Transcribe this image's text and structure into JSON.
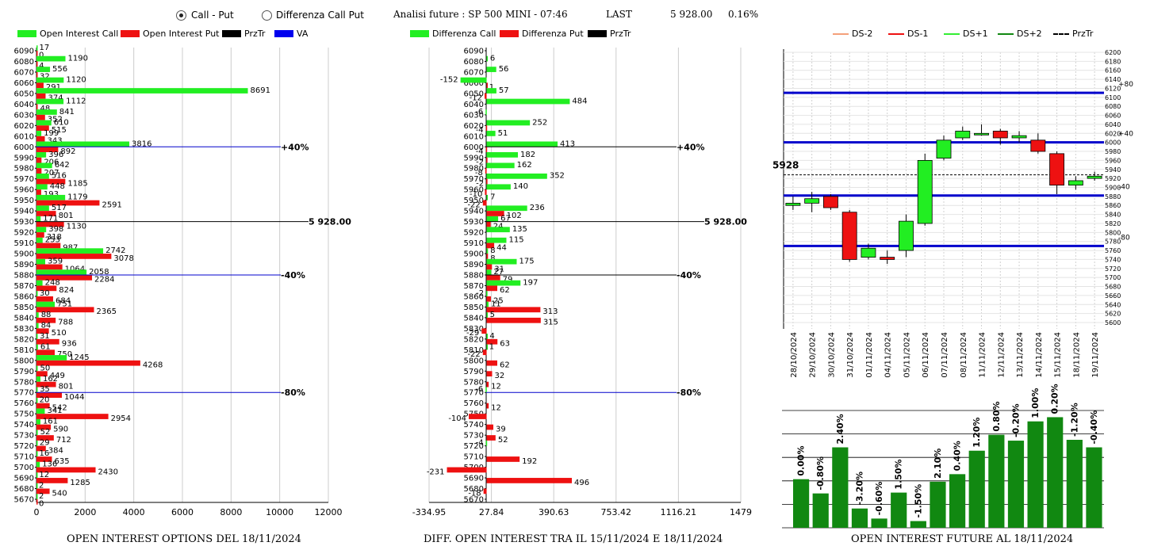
{
  "controls": {
    "radio_call_put": "Call - Put",
    "radio_diff": "Differenza Call Put",
    "selected": "call_put"
  },
  "info": {
    "title": "Analisi future : SP 500 MINI - 07:46",
    "last_label": "LAST",
    "last_value": "5 928.00",
    "change": "0.16%"
  },
  "chart_data": [
    {
      "type": "bar",
      "orientation": "horizontal",
      "footer": "OPEN INTEREST OPTIONS DEL 18/11/2024",
      "legend": [
        {
          "name": "Open Interest Call",
          "color": "#22ee22"
        },
        {
          "name": "Open Interest Put",
          "color": "#ee1111"
        },
        {
          "name": "PrzTr",
          "color": "#000000"
        },
        {
          "name": "VA",
          "color": "#0000ee"
        }
      ],
      "strikes": [
        6090,
        6080,
        6070,
        6060,
        6050,
        6040,
        6030,
        6020,
        6010,
        6000,
        5990,
        5980,
        5970,
        5960,
        5950,
        5940,
        5930,
        5920,
        5910,
        5900,
        5890,
        5880,
        5870,
        5860,
        5850,
        5840,
        5830,
        5820,
        5810,
        5800,
        5790,
        5780,
        5770,
        5760,
        5750,
        5740,
        5730,
        5720,
        5710,
        5700,
        5690,
        5680,
        5670
      ],
      "call": [
        17,
        1190,
        556,
        1120,
        8691,
        1112,
        841,
        610,
        199,
        3816,
        396,
        642,
        516,
        448,
        1179,
        517,
        171,
        398,
        253,
        2742,
        359,
        2058,
        248,
        30,
        751,
        88,
        84,
        31,
        61,
        1245,
        50,
        162,
        35,
        20,
        341,
        161,
        52,
        29,
        16,
        136,
        12,
        2,
        2
      ],
      "put": [
        0,
        4,
        32,
        291,
        374,
        48,
        352,
        515,
        343,
        892,
        206,
        207,
        1185,
        193,
        2591,
        801,
        1130,
        318,
        987,
        3078,
        1064,
        2284,
        824,
        684,
        2365,
        788,
        510,
        936,
        750,
        4268,
        449,
        801,
        1044,
        542,
        2954,
        590,
        712,
        384,
        635,
        2430,
        1285,
        540,
        0
      ],
      "xticks": [
        "0",
        "2000",
        "4000",
        "6000",
        "8000",
        "10000",
        "12000"
      ],
      "xlim": [
        0,
        12000
      ],
      "lines": [
        {
          "strike": 6000,
          "label": "+40%",
          "color": "#0000cc"
        },
        {
          "strike": 5930,
          "label": "5 928.00",
          "color": "#000000"
        },
        {
          "strike": 5880,
          "label": "-40%",
          "color": "#0000cc"
        },
        {
          "strike": 5770,
          "label": "-80%",
          "color": "#0000cc"
        }
      ]
    },
    {
      "type": "bar",
      "orientation": "horizontal",
      "footer": "DIFF. OPEN INTEREST TRA IL 15/11/2024 E 18/11/2024",
      "legend": [
        {
          "name": "Differenza Call",
          "color": "#22ee22"
        },
        {
          "name": "Differenza Put",
          "color": "#ee1111"
        },
        {
          "name": "PrzTr",
          "color": "#000000"
        }
      ],
      "strikes": [
        6090,
        6080,
        6070,
        6060,
        6050,
        6040,
        6030,
        6020,
        6010,
        6000,
        5990,
        5980,
        5970,
        5960,
        5950,
        5940,
        5930,
        5920,
        5910,
        5900,
        5890,
        5880,
        5870,
        5860,
        5850,
        5840,
        5830,
        5820,
        5810,
        5800,
        5790,
        5780,
        5770,
        5760,
        5750,
        5740,
        5730,
        5720,
        5710,
        5700,
        5690,
        5680,
        5670
      ],
      "call": [
        null,
        6,
        56,
        -152,
        57,
        484,
        -6,
        252,
        51,
        413,
        182,
        162,
        352,
        140,
        7,
        236,
        67,
        135,
        115,
        8,
        175,
        27,
        197,
        -2,
        11,
        5,
        null,
        4,
        1,
        null,
        null,
        null,
        -6,
        null,
        null,
        null,
        null,
        -4,
        null,
        null,
        null,
        null,
        null
      ],
      "put": [
        null,
        null,
        null,
        1,
        -12,
        null,
        null,
        -4,
        null,
        -4,
        -2,
        -8,
        -2,
        -10,
        -22,
        102,
        24,
        null,
        44,
        8,
        31,
        79,
        62,
        25,
        313,
        315,
        -29,
        63,
        -22,
        62,
        32,
        12,
        null,
        12,
        -104,
        39,
        52,
        null,
        192,
        -231,
        496,
        -18,
        null
      ],
      "xticks": [
        "-334.95",
        "27.84",
        "390.63",
        "753.42",
        "1116.21",
        "1479"
      ],
      "xlim": [
        -334.95,
        1479
      ],
      "lines": [
        {
          "strike": 6000,
          "label": "+40%",
          "color": "#000000"
        },
        {
          "strike": 5930,
          "label": "5 928.00",
          "color": "#000000"
        },
        {
          "strike": 5880,
          "label": "-40%",
          "color": "#000000"
        },
        {
          "strike": 5770,
          "label": "-80%",
          "color": "#0000cc"
        }
      ]
    },
    {
      "type": "candlestick",
      "legend": [
        {
          "name": "DS-2",
          "color": "#f4a07a"
        },
        {
          "name": "DS-1",
          "color": "#ee1111"
        },
        {
          "name": "DS+1",
          "color": "#33ee33"
        },
        {
          "name": "DS+2",
          "color": "#118811"
        },
        {
          "name": "PrzTr",
          "color": "#000000"
        }
      ],
      "dates": [
        "28/10/2024",
        "29/10/2024",
        "30/10/2024",
        "31/10/2024",
        "01/11/2024",
        "04/11/2024",
        "05/11/2024",
        "06/11/2024",
        "07/11/2024",
        "08/11/2024",
        "11/11/2024",
        "12/11/2024",
        "13/11/2024",
        "14/11/2024",
        "15/11/2024",
        "18/11/2024",
        "19/11/2024"
      ],
      "open": [
        5860,
        5865,
        5880,
        5845,
        5745,
        5745,
        5760,
        5820,
        5965,
        6010,
        6020,
        6025,
        6010,
        6005,
        5975,
        5905,
        5920
      ],
      "close": [
        5865,
        5875,
        5855,
        5740,
        5765,
        5740,
        5825,
        5960,
        6005,
        6025,
        6020,
        6010,
        6015,
        5980,
        5905,
        5915,
        5925
      ],
      "high": [
        5880,
        5890,
        5885,
        5850,
        5775,
        5760,
        5840,
        5975,
        6015,
        6035,
        6040,
        6030,
        6025,
        6020,
        5980,
        5925,
        5935
      ],
      "low": [
        5850,
        5845,
        5850,
        5735,
        5740,
        5730,
        5745,
        5815,
        5960,
        6005,
        6015,
        5995,
        6000,
        5975,
        5885,
        5895,
        5915
      ],
      "ylim": [
        5600,
        6200
      ],
      "yticks": [
        5600,
        5620,
        5640,
        5660,
        5680,
        5700,
        5720,
        5740,
        5760,
        5780,
        5800,
        5820,
        5840,
        5860,
        5880,
        5900,
        5920,
        5940,
        5960,
        5980,
        6000,
        6020,
        6040,
        6060,
        6080,
        6100,
        6120,
        6140,
        6160,
        6180,
        6200
      ],
      "price_label": "5928",
      "price": 5928,
      "levels": [
        {
          "value": 6110,
          "label": "+80",
          "color": "#0000cc"
        },
        {
          "value": 6000,
          "label": "+40",
          "color": "#0000cc"
        },
        {
          "value": 5882,
          "label": "-40",
          "color": "#0000cc"
        },
        {
          "value": 5770,
          "label": "-80",
          "color": "#0000cc"
        }
      ]
    },
    {
      "type": "bar",
      "footer": "OPEN INTEREST FUTURE AL 18/11/2024",
      "labels": [
        "0.00%",
        "-0.80%",
        "2.40%",
        "-3.20%",
        "-0.60%",
        "1.50%",
        "-1.50%",
        "2.10%",
        "0.40%",
        "1.20%",
        "0.80%",
        "-0.20%",
        "1.00%",
        "0.20%",
        "-1.20%",
        "-0.40%"
      ],
      "values": [
        0.0,
        -0.8,
        2.4,
        -3.2,
        -0.6,
        1.5,
        -1.5,
        2.1,
        0.4,
        1.2,
        0.8,
        -0.2,
        1.0,
        0.2,
        -1.2,
        -0.4
      ],
      "level_index": [
        58,
        41,
        96,
        23,
        11,
        42,
        8,
        55,
        64,
        92,
        111,
        104,
        127,
        132,
        105,
        96
      ],
      "color": "#118811"
    }
  ]
}
